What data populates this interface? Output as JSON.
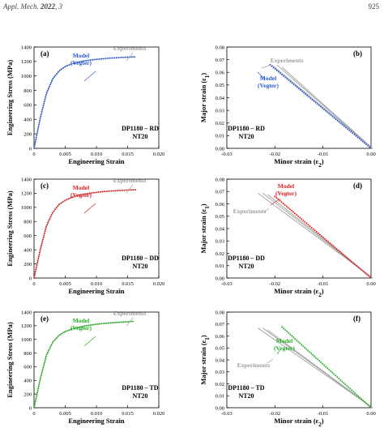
{
  "header": {
    "journal": "Appl. Mech.",
    "year": "2022",
    "volume": "3",
    "page": "925"
  },
  "colors": {
    "axis": "#000000",
    "experiments": "#a0a0a0",
    "blue": "#2a5bd7",
    "red": "#e02020",
    "green": "#22b022"
  },
  "chart_data": [
    {
      "id": "a",
      "panel_label": "(a)",
      "type": "line",
      "xlabel": "Engineering Strain",
      "ylabel": "Engineering Stress (MPa)",
      "xlim": [
        0,
        0.02
      ],
      "ylim": [
        0,
        1400
      ],
      "xticks": [
        0,
        0.005,
        0.01,
        0.015,
        0.02
      ],
      "xtick_labels": [
        "0",
        "0.005",
        "0.010",
        "0.015",
        "0.020"
      ],
      "yticks": [
        0,
        200,
        400,
        600,
        800,
        1000,
        1200,
        1400
      ],
      "ytick_labels": [
        "0",
        "200",
        "400",
        "600",
        "800",
        "1000",
        "1200",
        "1400"
      ],
      "material_label": [
        "DP1180 – RD",
        "NT20"
      ],
      "model_label": [
        "Model",
        "(Vegter)"
      ],
      "model_color": "#2a5bd7",
      "exp_label": "Experiments",
      "series": [
        {
          "name": "Experiments",
          "style": "solid",
          "color": "#a0a0a0",
          "x": [
            0,
            0.001,
            0.002,
            0.003,
            0.004,
            0.005,
            0.006,
            0.007,
            0.008,
            0.009,
            0.01,
            0.011,
            0.012,
            0.013,
            0.014,
            0.015,
            0.0163
          ],
          "y": [
            0,
            420,
            760,
            960,
            1070,
            1130,
            1165,
            1190,
            1207,
            1220,
            1230,
            1238,
            1245,
            1250,
            1255,
            1260,
            1265
          ]
        },
        {
          "name": "Model (Vegter)",
          "style": "dotted",
          "color": "#2a5bd7",
          "x": [
            0,
            0.001,
            0.002,
            0.003,
            0.004,
            0.005,
            0.006,
            0.007,
            0.008,
            0.009,
            0.01,
            0.011,
            0.012,
            0.013,
            0.014,
            0.015,
            0.0163
          ],
          "y": [
            0,
            420,
            760,
            960,
            1070,
            1130,
            1165,
            1190,
            1207,
            1220,
            1230,
            1238,
            1245,
            1250,
            1255,
            1260,
            1265
          ]
        }
      ]
    },
    {
      "id": "b",
      "panel_label": "(b)",
      "type": "line",
      "xlabel": "Minor strain (ε2)",
      "ylabel": "Major strain (ε1)",
      "xlim": [
        -0.03,
        0
      ],
      "ylim": [
        0,
        0.08
      ],
      "xticks": [
        -0.03,
        -0.02,
        -0.01,
        0
      ],
      "xtick_labels": [
        "-0.03",
        "-0.02",
        "-0.01",
        "0.00"
      ],
      "yticks": [
        0,
        0.01,
        0.02,
        0.03,
        0.04,
        0.05,
        0.06,
        0.07,
        0.08
      ],
      "ytick_labels": [
        "0.00",
        "0.01",
        "0.02",
        "0.03",
        "0.04",
        "0.05",
        "0.06",
        "0.07",
        "0.08"
      ],
      "material_label": [
        "DP1180 – RD",
        "NT20"
      ],
      "model_label": [
        "Model",
        "(Vegter)"
      ],
      "model_color": "#2a5bd7",
      "exp_label": "Experiments",
      "series": [
        {
          "name": "Experiments 1",
          "style": "solid",
          "color": "#a0a0a0",
          "x": [
            -0.0205,
            0.0003
          ],
          "y": [
            0.0655,
            0
          ]
        },
        {
          "name": "Experiments 2",
          "style": "solid",
          "color": "#a0a0a0",
          "x": [
            -0.0195,
            0.0003
          ],
          "y": [
            0.0655,
            0
          ]
        },
        {
          "name": "Experiments 3",
          "style": "solid",
          "color": "#a0a0a0",
          "x": [
            -0.0185,
            0.0003
          ],
          "y": [
            0.064,
            0
          ]
        },
        {
          "name": "Model (Vegter)",
          "style": "dotted",
          "color": "#2a5bd7",
          "x": [
            -0.021,
            0
          ],
          "y": [
            0.066,
            0
          ]
        }
      ]
    },
    {
      "id": "c",
      "panel_label": "(c)",
      "type": "line",
      "xlabel": "Engineering Strain",
      "ylabel": "Engineering Stress (MPa)",
      "xlim": [
        0,
        0.02
      ],
      "ylim": [
        0,
        1400
      ],
      "xticks": [
        0,
        0.005,
        0.01,
        0.015,
        0.02
      ],
      "xtick_labels": [
        "0",
        "0.005",
        "0.010",
        "0.015",
        "0.020"
      ],
      "yticks": [
        0,
        200,
        400,
        600,
        800,
        1000,
        1200,
        1400
      ],
      "ytick_labels": [
        "0",
        "200",
        "400",
        "600",
        "800",
        "1000",
        "1200",
        "1400"
      ],
      "material_label": [
        "DP1180 – DD",
        "NT20"
      ],
      "model_label": [
        "Model",
        "(Vegter)"
      ],
      "model_color": "#e02020",
      "exp_label": "Experiments",
      "series": [
        {
          "name": "Experiments",
          "style": "solid",
          "color": "#a0a0a0",
          "x": [
            0,
            0.001,
            0.002,
            0.003,
            0.004,
            0.005,
            0.006,
            0.007,
            0.008,
            0.009,
            0.01,
            0.011,
            0.012,
            0.013,
            0.014,
            0.015,
            0.0163
          ],
          "y": [
            0,
            400,
            740,
            930,
            1040,
            1100,
            1140,
            1168,
            1188,
            1202,
            1213,
            1222,
            1230,
            1236,
            1241,
            1246,
            1250
          ]
        },
        {
          "name": "Model (Vegter)",
          "style": "dotted",
          "color": "#e02020",
          "x": [
            0,
            0.001,
            0.002,
            0.003,
            0.004,
            0.005,
            0.006,
            0.007,
            0.008,
            0.009,
            0.01,
            0.011,
            0.012,
            0.013,
            0.014,
            0.015,
            0.0163
          ],
          "y": [
            0,
            400,
            740,
            930,
            1040,
            1100,
            1140,
            1168,
            1188,
            1202,
            1213,
            1222,
            1230,
            1236,
            1241,
            1246,
            1250
          ]
        }
      ]
    },
    {
      "id": "d",
      "panel_label": "(d)",
      "type": "line",
      "xlabel": "Minor strain (ε2)",
      "ylabel": "Major strain (ε1)",
      "xlim": [
        -0.03,
        0
      ],
      "ylim": [
        0,
        0.08
      ],
      "xticks": [
        -0.03,
        -0.02,
        -0.01,
        0
      ],
      "xtick_labels": [
        "-0.03",
        "-0.02",
        "-0.01",
        "0.00"
      ],
      "yticks": [
        0,
        0.01,
        0.02,
        0.03,
        0.04,
        0.05,
        0.06,
        0.07,
        0.08
      ],
      "ytick_labels": [
        "0.00",
        "0.01",
        "0.02",
        "0.03",
        "0.04",
        "0.05",
        "0.06",
        "0.07",
        "0.08"
      ],
      "material_label": [
        "DP1180 – DD",
        "NT20"
      ],
      "model_label": [
        "Model",
        "(Vegter)"
      ],
      "model_color": "#e02020",
      "exp_label": "Experiments",
      "series": [
        {
          "name": "Experiments 1",
          "style": "solid",
          "color": "#a0a0a0",
          "x": [
            -0.0235,
            0.0003
          ],
          "y": [
            0.0685,
            0
          ]
        },
        {
          "name": "Experiments 2",
          "style": "solid",
          "color": "#a0a0a0",
          "x": [
            -0.0225,
            0.0003
          ],
          "y": [
            0.0685,
            0
          ]
        },
        {
          "name": "Experiments 3",
          "style": "solid",
          "color": "#a0a0a0",
          "x": [
            -0.0215,
            0.0003
          ],
          "y": [
            0.0675,
            0
          ]
        },
        {
          "name": "Model (Vegter)",
          "style": "dotted",
          "color": "#e02020",
          "x": [
            -0.02,
            0
          ],
          "y": [
            0.066,
            0
          ]
        }
      ]
    },
    {
      "id": "e",
      "panel_label": "(e)",
      "type": "line",
      "xlabel": "Engineering Strain",
      "ylabel": "Engineering Stress (MPa)",
      "xlim": [
        0,
        0.02
      ],
      "ylim": [
        0,
        1400
      ],
      "xticks": [
        0,
        0.005,
        0.01,
        0.015,
        0.02
      ],
      "xtick_labels": [
        "0",
        "0.005",
        "0.010",
        "0.015",
        "0.020"
      ],
      "yticks": [
        0,
        200,
        400,
        600,
        800,
        1000,
        1200,
        1400
      ],
      "ytick_labels": [
        "0",
        "200",
        "400",
        "600",
        "800",
        "1000",
        "1200",
        "1400"
      ],
      "material_label": [
        "DP1180 – TD",
        "NT20"
      ],
      "model_label": [
        "Model",
        "(Vegter)"
      ],
      "model_color": "#22b022",
      "exp_label": "Experiments",
      "series": [
        {
          "name": "Experiments",
          "style": "solid",
          "color": "#a0a0a0",
          "x": [
            0,
            0.001,
            0.002,
            0.003,
            0.004,
            0.005,
            0.006,
            0.007,
            0.008,
            0.009,
            0.01,
            0.011,
            0.012,
            0.013,
            0.014,
            0.015,
            0.016
          ],
          "y": [
            0,
            420,
            770,
            960,
            1060,
            1115,
            1150,
            1175,
            1195,
            1210,
            1222,
            1232,
            1240,
            1247,
            1253,
            1258,
            1265
          ]
        },
        {
          "name": "Model (Vegter)",
          "style": "dotted",
          "color": "#22b022",
          "x": [
            0,
            0.001,
            0.002,
            0.003,
            0.004,
            0.005,
            0.006,
            0.007,
            0.008,
            0.009,
            0.01,
            0.011,
            0.012,
            0.013,
            0.014,
            0.015,
            0.016
          ],
          "y": [
            0,
            420,
            770,
            960,
            1060,
            1115,
            1150,
            1175,
            1195,
            1210,
            1222,
            1232,
            1240,
            1247,
            1253,
            1258,
            1265
          ]
        }
      ]
    },
    {
      "id": "f",
      "panel_label": "(f)",
      "type": "line",
      "xlabel": "Minor strain (ε2)",
      "ylabel": "Major strain (ε1)",
      "xlim": [
        -0.03,
        0
      ],
      "ylim": [
        0,
        0.08
      ],
      "xticks": [
        -0.03,
        -0.02,
        -0.01,
        0
      ],
      "xtick_labels": [
        "-0.03",
        "-0.02",
        "-0.01",
        "0.00"
      ],
      "yticks": [
        0,
        0.01,
        0.02,
        0.03,
        0.04,
        0.05,
        0.06,
        0.07,
        0.08
      ],
      "ytick_labels": [
        "0.00",
        "0.01",
        "0.02",
        "0.03",
        "0.04",
        "0.05",
        "0.06",
        "0.07",
        "0.08"
      ],
      "material_label": [
        "DP1180 – TD",
        "NT20"
      ],
      "model_label": [
        "Model",
        "(Vegter)"
      ],
      "model_color": "#22b022",
      "exp_label": "Experiments",
      "series": [
        {
          "name": "Experiments 1",
          "style": "solid",
          "color": "#a0a0a0",
          "x": [
            -0.0235,
            0.0003
          ],
          "y": [
            0.0665,
            0
          ]
        },
        {
          "name": "Experiments 2",
          "style": "solid",
          "color": "#a0a0a0",
          "x": [
            -0.0225,
            0.0003
          ],
          "y": [
            0.0665,
            0
          ]
        },
        {
          "name": "Experiments 3",
          "style": "solid",
          "color": "#a0a0a0",
          "x": [
            -0.0215,
            0.0003
          ],
          "y": [
            0.065,
            0
          ]
        },
        {
          "name": "Model (Vegter)",
          "style": "dotted",
          "color": "#22b022",
          "x": [
            -0.0185,
            0
          ],
          "y": [
            0.0675,
            0
          ]
        }
      ]
    }
  ]
}
